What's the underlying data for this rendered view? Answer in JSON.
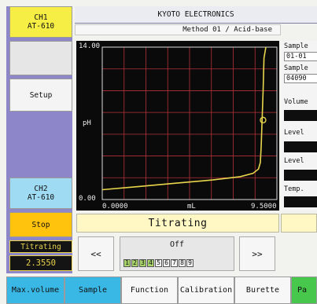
{
  "left": {
    "ch1_name": "CH1",
    "ch1_model": "AT-610",
    "setup": "Setup",
    "ch2_name": "CH2",
    "ch2_model": "AT-610",
    "stop": "Stop",
    "state": "Titrating",
    "reading": "2.3550"
  },
  "header": {
    "brand": "KYOTO ELECTRONICS",
    "method": "Method 01 / Acid-base"
  },
  "chart_data": {
    "type": "line",
    "ylabel": "pH",
    "xlabel": "mL",
    "ylim": [
      0.0,
      14.0
    ],
    "xlim": [
      0.0,
      9.5
    ],
    "y_tick_labels": [
      "14.00",
      "0.00"
    ],
    "x_tick_labels": [
      "0.0000",
      "9.5000"
    ],
    "grid": true,
    "line_color": "#e8d64c",
    "series": [
      {
        "x": [
          0.0,
          2.0,
          4.0,
          6.0,
          7.5,
          8.2,
          8.5,
          8.6,
          8.65,
          8.7,
          8.75,
          8.8,
          8.9
        ],
        "values": [
          0.9,
          1.2,
          1.5,
          1.8,
          2.1,
          2.4,
          2.8,
          3.4,
          5.0,
          7.5,
          10.0,
          13.0,
          14.0
        ]
      }
    ],
    "marker": {
      "x": 8.75,
      "y": 7.3
    }
  },
  "right": {
    "sample1_label": "Sample",
    "sample1_value": "01-01",
    "sample2_label": "Sample",
    "sample2_value": "04090",
    "volume_label": "Volume",
    "level1_label": "Level",
    "level2_label": "Level",
    "temp_label": "Temp."
  },
  "status": "Titrating",
  "nav": {
    "prev": "<<",
    "next": ">>",
    "off_label": "Off",
    "leds": [
      "1",
      "2",
      "3",
      "4",
      "5",
      "6",
      "7",
      "8",
      "9"
    ],
    "leds_on": [
      1,
      2,
      3,
      4
    ]
  },
  "tabs": [
    "Max.volume",
    "Sample",
    "Function",
    "Calibration",
    "Burette",
    "Pa"
  ]
}
